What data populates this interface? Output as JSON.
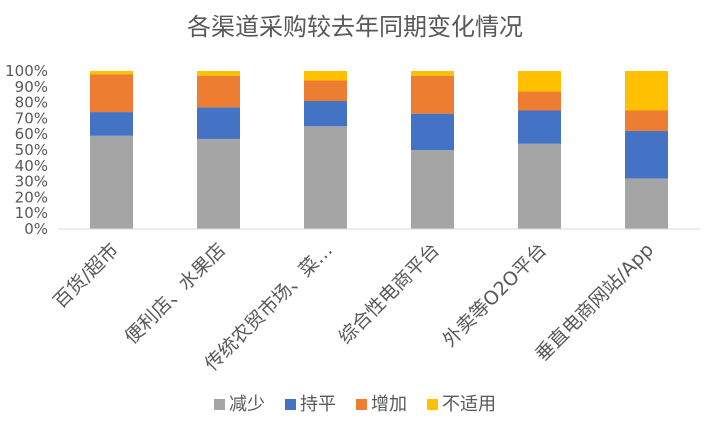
{
  "chart_data": {
    "type": "bar",
    "stacked": true,
    "percent": true,
    "title": "各渠道采购较去年同期变化情况",
    "xlabel": "",
    "ylabel": "",
    "ylim": [
      0,
      100
    ],
    "yticks": [
      "0%",
      "10%",
      "20%",
      "30%",
      "40%",
      "50%",
      "60%",
      "70%",
      "80%",
      "90%",
      "100%"
    ],
    "categories": [
      "百货/超市",
      "便利店、水果店",
      "传统农贸市场、菜…",
      "综合性电商平台",
      "外卖等O2O平台",
      "垂直电商网站/App"
    ],
    "series": [
      {
        "name": "减少",
        "color": "#a5a5a5",
        "values": [
          59,
          57,
          65,
          50,
          54,
          32
        ]
      },
      {
        "name": "持平",
        "color": "#4472c4",
        "values": [
          15,
          20,
          16,
          23,
          21,
          30
        ]
      },
      {
        "name": "增加",
        "color": "#ed7d31",
        "values": [
          24,
          20,
          13,
          24,
          12,
          13
        ]
      },
      {
        "name": "不适用",
        "color": "#ffc000",
        "values": [
          2,
          3,
          6,
          3,
          13,
          25
        ]
      }
    ],
    "legend": "bottom",
    "grid": false
  }
}
